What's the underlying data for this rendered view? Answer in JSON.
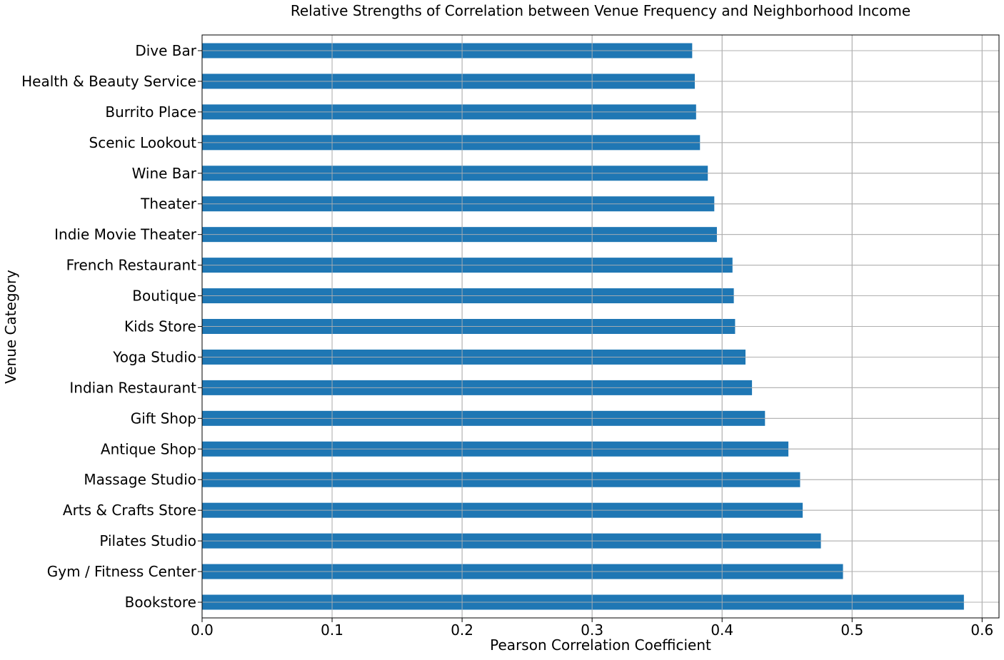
{
  "chart_data": {
    "type": "bar",
    "orientation": "horizontal",
    "title": "Relative Strengths of Correlation between Venue Frequency and Neighborhood Income",
    "xlabel": "Pearson Correlation Coefficient",
    "ylabel": "Venue Category",
    "xlim": [
      0.0,
      0.613
    ],
    "xticks": [
      "0.0",
      "0.1",
      "0.2",
      "0.3",
      "0.4",
      "0.5",
      "0.6"
    ],
    "grid": true,
    "legend": "none",
    "bar_color": "#1f77b4",
    "categories": [
      "Dive Bar",
      "Health & Beauty Service",
      "Burrito Place",
      "Scenic Lookout",
      "Wine Bar",
      "Theater",
      "Indie Movie Theater",
      "French Restaurant",
      "Boutique",
      "Kids Store",
      "Yoga Studio",
      "Indian Restaurant",
      "Gift Shop",
      "Antique Shop",
      "Massage Studio",
      "Arts & Crafts Store",
      "Pilates Studio",
      "Gym / Fitness Center",
      "Bookstore"
    ],
    "values": [
      0.377,
      0.379,
      0.38,
      0.383,
      0.389,
      0.394,
      0.396,
      0.408,
      0.409,
      0.41,
      0.418,
      0.423,
      0.433,
      0.451,
      0.46,
      0.462,
      0.476,
      0.493,
      0.586
    ]
  }
}
